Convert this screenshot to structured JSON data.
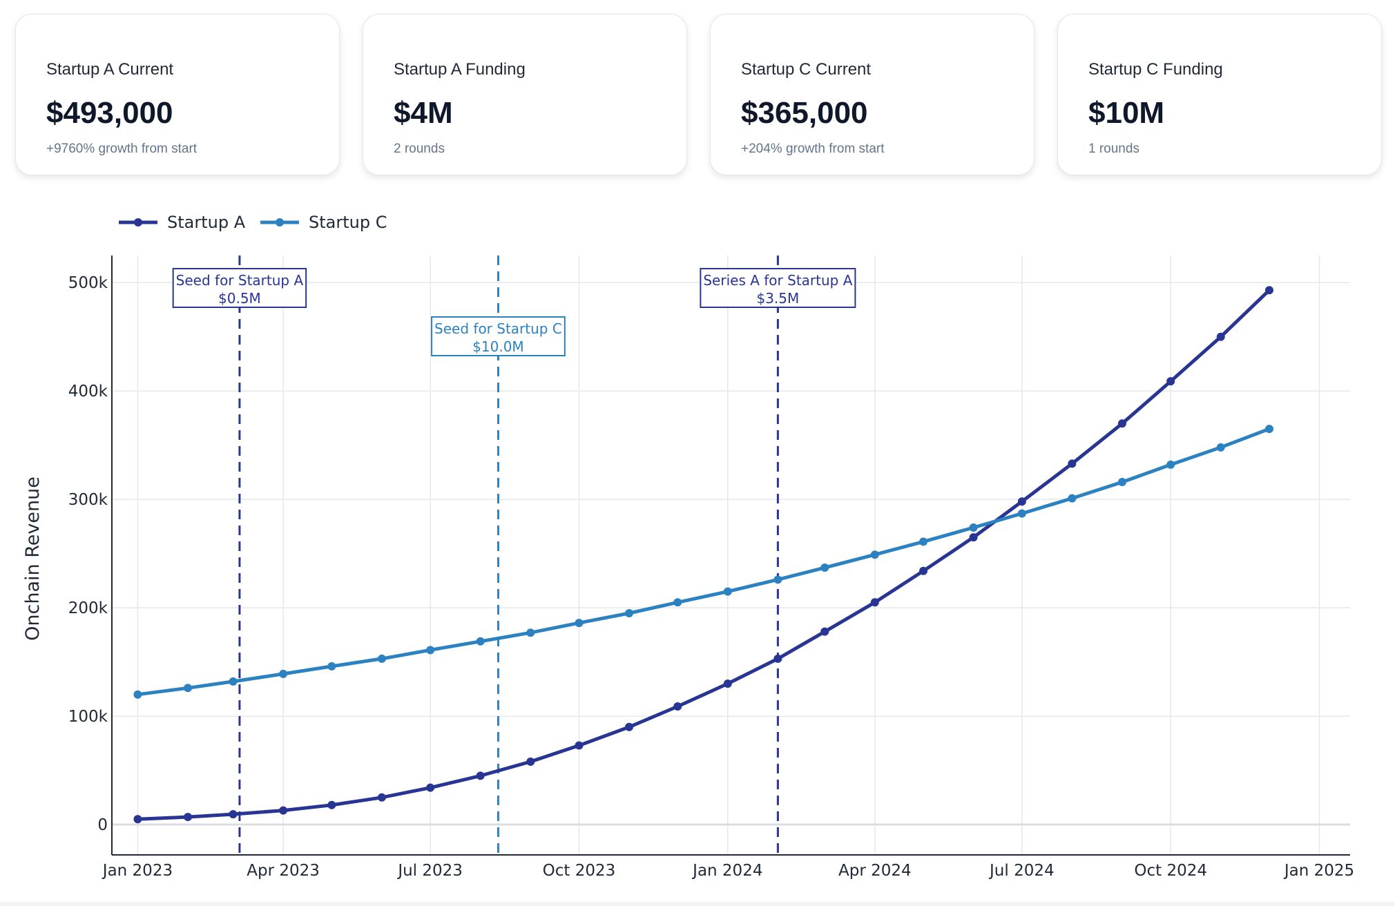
{
  "cards": [
    {
      "label": "Startup A Current",
      "value": "$493,000",
      "sub": "+9760% growth from start"
    },
    {
      "label": "Startup A Funding",
      "value": "$4M",
      "sub": "2 rounds"
    },
    {
      "label": "Startup C Current",
      "value": "$365,000",
      "sub": "+204% growth from start"
    },
    {
      "label": "Startup C Funding",
      "value": "$10M",
      "sub": "1 rounds"
    }
  ],
  "chart_data": {
    "type": "line",
    "title": "",
    "xlabel": "",
    "ylabel": "Onchain Revenue",
    "x": [
      "2023-01-01",
      "2023-02-01",
      "2023-03-01",
      "2023-04-01",
      "2023-05-01",
      "2023-06-01",
      "2023-07-01",
      "2023-08-01",
      "2023-09-01",
      "2023-10-01",
      "2023-11-01",
      "2023-12-01",
      "2024-01-01",
      "2024-02-01",
      "2024-03-01",
      "2024-04-01",
      "2024-05-01",
      "2024-06-01",
      "2024-07-01",
      "2024-08-01",
      "2024-09-01",
      "2024-10-01",
      "2024-11-01",
      "2024-12-01"
    ],
    "series": [
      {
        "name": "Startup A",
        "color": "#283593",
        "values": [
          5000,
          7000,
          9500,
          13000,
          18000,
          25000,
          34000,
          45000,
          58000,
          73000,
          90000,
          109000,
          130000,
          153000,
          178000,
          205000,
          234000,
          265000,
          298000,
          333000,
          370000,
          409000,
          450000,
          493000
        ]
      },
      {
        "name": "Startup C",
        "color": "#2c82c0",
        "values": [
          120000,
          126000,
          132000,
          139000,
          146000,
          153000,
          161000,
          169000,
          177000,
          186000,
          195000,
          205000,
          215000,
          226000,
          237000,
          249000,
          261000,
          274000,
          287000,
          301000,
          316000,
          332000,
          348000,
          365000
        ]
      }
    ],
    "ylim": [
      -28000,
      525000
    ],
    "xlim": [
      "2022-12-16",
      "2025-01-20"
    ],
    "yticks": [
      0,
      100000,
      200000,
      300000,
      400000,
      500000
    ],
    "ytick_labels": [
      "0",
      "100k",
      "200k",
      "300k",
      "400k",
      "500k"
    ],
    "xticks": [
      "2023-01-01",
      "2023-04-01",
      "2023-07-01",
      "2023-10-01",
      "2024-01-01",
      "2024-04-01",
      "2024-07-01",
      "2024-10-01",
      "2025-01-01"
    ],
    "xtick_labels": [
      "Jan 2023",
      "Apr 2023",
      "Jul 2023",
      "Oct 2023",
      "Jan 2024",
      "Apr 2024",
      "Jul 2024",
      "Oct 2024",
      "Jan 2025"
    ],
    "grid": true,
    "legend_position": "top-left",
    "annotations": [
      {
        "x": "2023-03-05",
        "line1": "Seed for Startup A",
        "line2": "$0.5M",
        "color": "#283593",
        "level": "upper"
      },
      {
        "x": "2023-08-12",
        "line1": "Seed for Startup C",
        "line2": "$10.0M",
        "color": "#2c82c0",
        "level": "lower"
      },
      {
        "x": "2024-02-01",
        "line1": "Series A for Startup A",
        "line2": "$3.5M",
        "color": "#283593",
        "level": "upper"
      }
    ]
  }
}
